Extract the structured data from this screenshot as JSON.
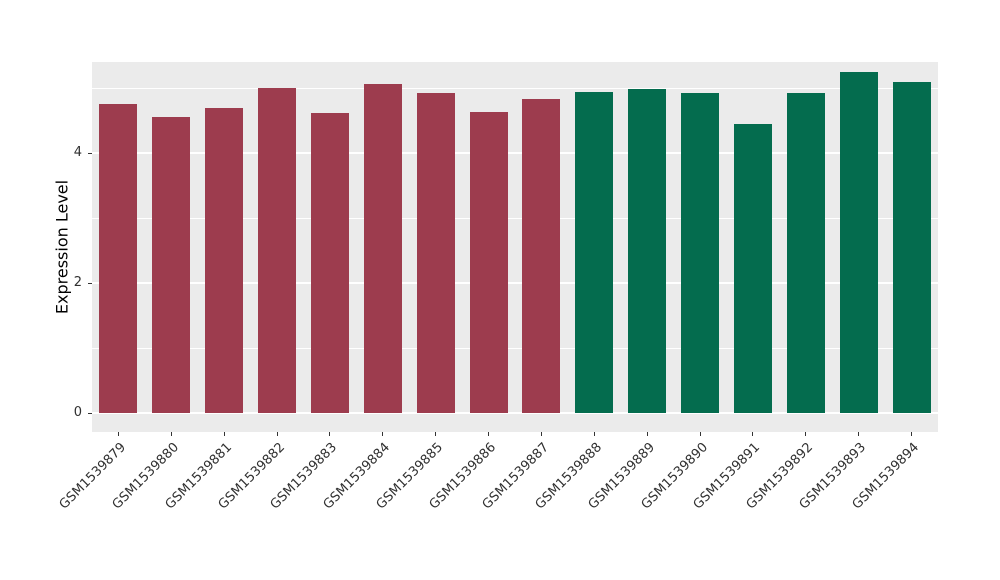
{
  "chart_data": {
    "type": "bar",
    "title": "",
    "xlabel": "",
    "ylabel": "Expression Level",
    "categories": [
      "GSM1539879",
      "GSM1539880",
      "GSM1539881",
      "GSM1539882",
      "GSM1539883",
      "GSM1539884",
      "GSM1539885",
      "GSM1539886",
      "GSM1539887",
      "GSM1539888",
      "GSM1539889",
      "GSM1539890",
      "GSM1539891",
      "GSM1539892",
      "GSM1539893",
      "GSM1539894"
    ],
    "values": [
      4.75,
      4.55,
      4.7,
      5.0,
      4.62,
      5.06,
      4.93,
      4.63,
      4.83,
      4.94,
      4.99,
      4.93,
      4.45,
      4.92,
      5.24,
      5.1
    ],
    "groups": [
      "maroon",
      "maroon",
      "maroon",
      "maroon",
      "maroon",
      "maroon",
      "maroon",
      "maroon",
      "maroon",
      "green",
      "green",
      "green",
      "green",
      "green",
      "green",
      "green"
    ],
    "group_colors": {
      "maroon": "#9d3c4e",
      "green": "#046c4e"
    },
    "ylim": [
      0,
      5.5
    ],
    "yticks": [
      0,
      2,
      4
    ],
    "yminor": [
      1,
      3,
      5
    ],
    "panel_background": "#ebebeb",
    "grid_color": "#ffffff",
    "axis_text_color": "#303030",
    "legend": "none",
    "grid": "on"
  }
}
